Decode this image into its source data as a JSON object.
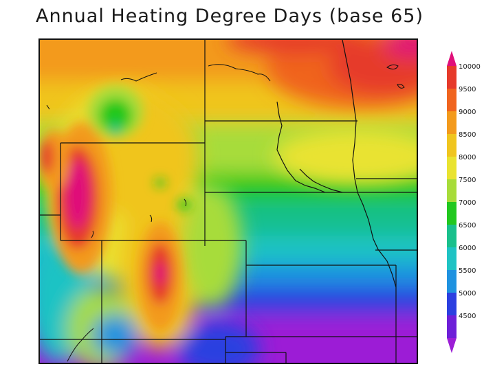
{
  "title": "Annual Heating Degree Days (base 65)",
  "colorbar": {
    "labels": [
      "10000",
      "9500",
      "9000",
      "8500",
      "8000",
      "7500",
      "7000",
      "6500",
      "6000",
      "5500",
      "5000",
      "4500"
    ],
    "colors": [
      "#e0107a",
      "#e63a2a",
      "#f0641e",
      "#f39a1c",
      "#f0c51e",
      "#e9e330",
      "#a7dc3a",
      "#21c81f",
      "#19c08c",
      "#1ec3c4",
      "#1e92e0",
      "#2b3fe0",
      "#6d1fd8",
      "#9c1ed6"
    ]
  },
  "chart_data": {
    "type": "heatmap",
    "title": "Annual Heating Degree Days (base 65)",
    "legend_levels": [
      4500,
      5000,
      5500,
      6000,
      6500,
      7000,
      7500,
      8000,
      8500,
      9000,
      9500,
      10000
    ],
    "legend_placement": "right"
  }
}
